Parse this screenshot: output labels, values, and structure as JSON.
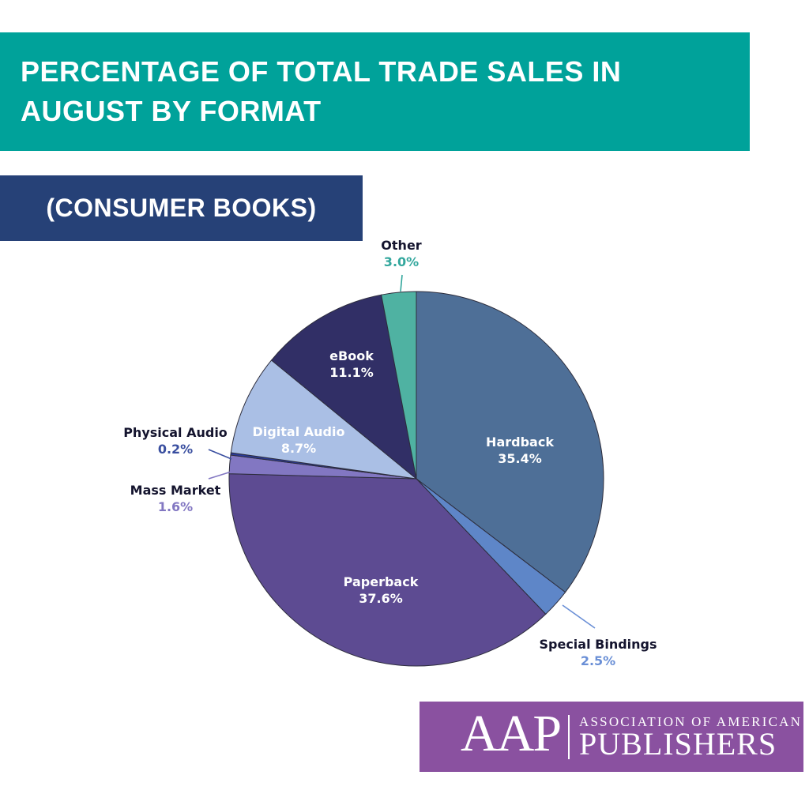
{
  "header": {
    "title_line1": "PERCENTAGE OF TOTAL TRADE SALES IN",
    "title_line2": "AUGUST BY FORMAT",
    "bg_color": "#00A29A",
    "text_color": "#FFFFFF"
  },
  "subtitle": {
    "text": "(CONSUMER BOOKS)",
    "bg_color": "#264177",
    "text_color": "#FFFFFF"
  },
  "chart_data": {
    "type": "pie",
    "title": "PERCENTAGE OF TOTAL TRADE SALES IN AUGUST BY FORMAT (CONSUMER BOOKS)",
    "unit": "%",
    "direction": "clockwise",
    "start_angle": "12 o'clock",
    "outside_label_name_color": "#14142E",
    "slice_outline_color": "#2D2D3C",
    "slices": [
      {
        "label": "Hardback",
        "value": 35.4,
        "display": "35.4%",
        "color": "#4E6F97",
        "label_placement": "inside",
        "label_color": "#FFFFFF"
      },
      {
        "label": "Special Bindings",
        "value": 2.5,
        "display": "2.5%",
        "color": "#5E86C8",
        "label_placement": "outside",
        "pct_color": "#6A8FD6"
      },
      {
        "label": "Paperback",
        "value": 37.6,
        "display": "37.6%",
        "color": "#5D4B92",
        "label_placement": "inside",
        "label_color": "#FFFFFF"
      },
      {
        "label": "Mass Market",
        "value": 1.6,
        "display": "1.6%",
        "color": "#8277C2",
        "label_placement": "outside",
        "pct_color": "#8277C2"
      },
      {
        "label": "Physical Audio",
        "value": 0.2,
        "display": "0.2%",
        "color": "#2A3A99",
        "label_placement": "outside",
        "pct_color": "#3A4FA0"
      },
      {
        "label": "Digital Audio",
        "value": 8.7,
        "display": "8.7%",
        "color": "#AABFE5",
        "label_placement": "inside",
        "label_color": "#FFFFFF"
      },
      {
        "label": "eBook",
        "value": 11.1,
        "display": "11.1%",
        "color": "#312F66",
        "label_placement": "inside",
        "label_color": "#FFFFFF"
      },
      {
        "label": "Other",
        "value": 3.0,
        "display": "3.0%",
        "color": "#4FB2A2",
        "label_placement": "outside",
        "pct_color": "#33A79D"
      }
    ]
  },
  "footer_logo": {
    "acronym": "AAP",
    "org_line1": "ASSOCIATION OF AMERICAN",
    "org_line2": "PUBLISHERS",
    "bg_color": "#8A51A0",
    "text_color": "#FFFFFF"
  }
}
